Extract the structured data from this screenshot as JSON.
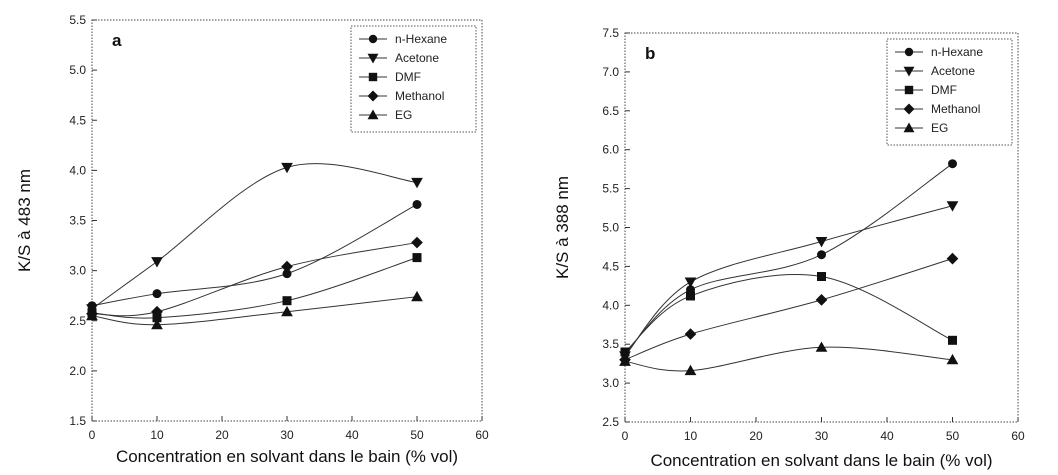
{
  "chart_data": [
    {
      "type": "line",
      "panel_label": "a",
      "xlabel": "Concentration en solvant dans le bain (% vol)",
      "ylabel": "K/S à 483 nm",
      "xlim": [
        0,
        60
      ],
      "ylim": [
        1.5,
        5.5
      ],
      "xticks": [
        "0",
        "10",
        "20",
        "30",
        "40",
        "50",
        "60"
      ],
      "yticks": [
        "1.5",
        "2.0",
        "2.5",
        "3.0",
        "3.5",
        "4.0",
        "4.5",
        "5.0",
        "5.5"
      ],
      "x": [
        0,
        10,
        30,
        50
      ],
      "legend_position": "top-right",
      "series": [
        {
          "name": "n-Hexane",
          "marker": "circle",
          "values": [
            2.65,
            2.77,
            2.97,
            3.66
          ]
        },
        {
          "name": "Acetone",
          "marker": "triangle-down",
          "values": [
            2.62,
            3.09,
            4.03,
            3.88
          ]
        },
        {
          "name": "DMF",
          "marker": "square",
          "values": [
            2.58,
            2.53,
            2.7,
            3.13
          ]
        },
        {
          "name": "Methanol",
          "marker": "diamond",
          "values": [
            2.57,
            2.59,
            3.04,
            3.28
          ]
        },
        {
          "name": "EG",
          "marker": "triangle-up",
          "values": [
            2.55,
            2.46,
            2.59,
            2.74
          ]
        }
      ]
    },
    {
      "type": "line",
      "panel_label": "b",
      "xlabel": "Concentration en solvant dans le bain (% vol)",
      "ylabel": "K/S à 388 nm",
      "xlim": [
        0,
        60
      ],
      "ylim": [
        2.5,
        7.5
      ],
      "xticks": [
        "0",
        "10",
        "20",
        "30",
        "40",
        "50",
        "60"
      ],
      "yticks": [
        "2.5",
        "3.0",
        "3.5",
        "4.0",
        "4.5",
        "5.0",
        "5.5",
        "6.0",
        "6.5",
        "7.0",
        "7.5"
      ],
      "x": [
        0,
        10,
        30,
        50
      ],
      "legend_position": "top-right",
      "series": [
        {
          "name": "n-Hexane",
          "marker": "circle",
          "values": [
            3.38,
            4.2,
            4.65,
            5.82
          ]
        },
        {
          "name": "Acetone",
          "marker": "triangle-down",
          "values": [
            3.35,
            4.3,
            4.82,
            5.28
          ]
        },
        {
          "name": "DMF",
          "marker": "square",
          "values": [
            3.4,
            4.12,
            4.37,
            3.55
          ]
        },
        {
          "name": "Methanol",
          "marker": "diamond",
          "values": [
            3.3,
            3.63,
            4.07,
            4.6
          ]
        },
        {
          "name": "EG",
          "marker": "triangle-up",
          "values": [
            3.28,
            3.16,
            3.46,
            3.3
          ]
        }
      ]
    }
  ]
}
